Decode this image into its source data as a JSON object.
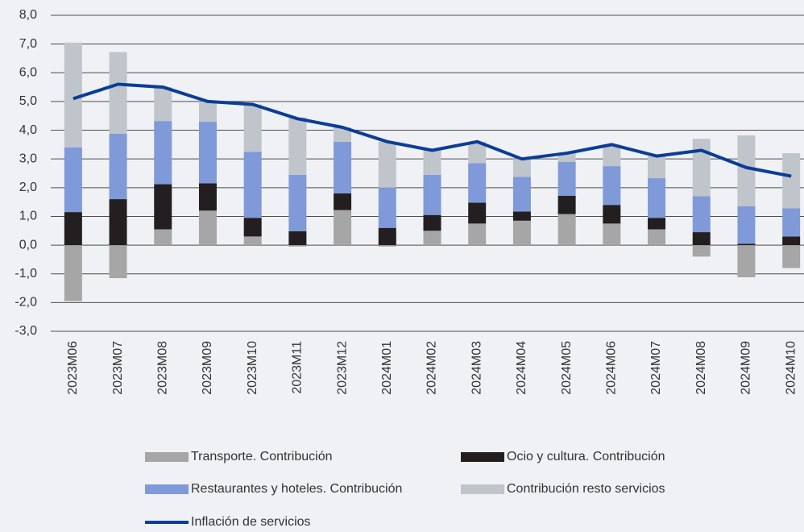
{
  "chart_data": {
    "type": "bar",
    "categories": [
      "2023M06",
      "2023M07",
      "2023M08",
      "2023M09",
      "2023M10",
      "2023M11",
      "2023M12",
      "2024M01",
      "2024M02",
      "2024M03",
      "2024M04",
      "2024M05",
      "2024M06",
      "2024M07",
      "2024M08",
      "2024M09",
      "2024M10"
    ],
    "series": [
      {
        "name": "Transporte. Contribución",
        "color": "#a6a6a6",
        "values": [
          -1.95,
          -1.15,
          0.55,
          1.2,
          0.3,
          -0.05,
          1.22,
          -0.05,
          0.5,
          0.75,
          0.85,
          1.08,
          0.75,
          0.55,
          -0.4,
          -1.12,
          -0.8
        ]
      },
      {
        "name": "Ocio y cultura. Contribución",
        "color": "#231f20",
        "values": [
          1.15,
          1.6,
          1.57,
          0.95,
          0.65,
          0.48,
          0.58,
          0.6,
          0.55,
          0.73,
          0.32,
          0.64,
          0.65,
          0.4,
          0.45,
          0.05,
          0.3
        ]
      },
      {
        "name": "Restaurantes y hoteles. Contribución",
        "color": "#7f99d9",
        "values": [
          2.25,
          2.28,
          2.2,
          2.15,
          2.3,
          1.97,
          1.8,
          1.4,
          1.4,
          1.37,
          1.21,
          1.18,
          1.35,
          1.38,
          1.25,
          1.3,
          0.98
        ]
      },
      {
        "name": "Contribución resto servicios",
        "color": "#c0c5cb",
        "values": [
          3.65,
          2.84,
          1.18,
          0.7,
          1.65,
          2.0,
          0.5,
          1.6,
          0.85,
          0.75,
          0.62,
          0.3,
          0.75,
          0.77,
          2.0,
          2.47,
          1.92
        ]
      },
      {
        "name": "Inflación de servicios",
        "color": "#0b3d97",
        "type": "line",
        "values": [
          5.1,
          5.6,
          5.5,
          5.0,
          4.9,
          4.4,
          4.1,
          3.6,
          3.3,
          3.6,
          3.0,
          3.2,
          3.5,
          3.1,
          3.3,
          2.7,
          2.4
        ]
      }
    ],
    "ylim": [
      -3,
      8
    ],
    "yticks": [
      {
        "value": -3,
        "label": "-3,0"
      },
      {
        "value": -2,
        "label": "-2,0"
      },
      {
        "value": -1,
        "label": "-1,0"
      },
      {
        "value": 0,
        "label": "0,0"
      },
      {
        "value": 1,
        "label": "1,0"
      },
      {
        "value": 2,
        "label": "2,0"
      },
      {
        "value": 3,
        "label": "3,0"
      },
      {
        "value": 4,
        "label": "4,0"
      },
      {
        "value": 5,
        "label": "5,0"
      },
      {
        "value": 6,
        "label": "6,0"
      },
      {
        "value": 7,
        "label": "7,0"
      },
      {
        "value": 8,
        "label": "8,0"
      }
    ],
    "grid": true,
    "stacked": true
  }
}
